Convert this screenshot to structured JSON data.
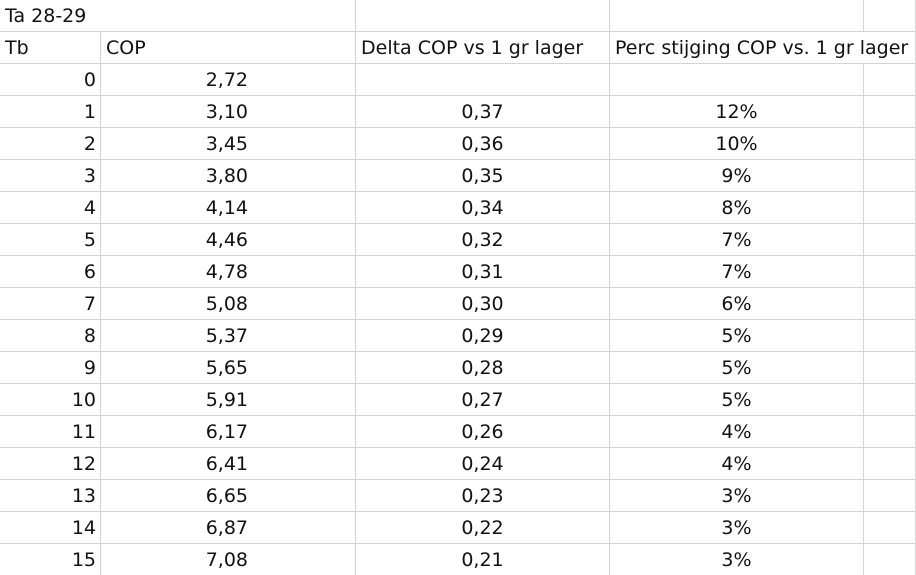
{
  "sheet": {
    "title_cell": "Ta 28-29",
    "headers": {
      "tb": "Tb",
      "cop": "COP",
      "delta": "Delta COP vs 1 gr lager",
      "perc": "Perc stijging COP vs. 1 gr lager"
    },
    "rows": [
      {
        "tb": "0",
        "cop": "2,72",
        "delta": "",
        "perc": ""
      },
      {
        "tb": "1",
        "cop": "3,10",
        "delta": "0,37",
        "perc": "12%"
      },
      {
        "tb": "2",
        "cop": "3,45",
        "delta": "0,36",
        "perc": "10%"
      },
      {
        "tb": "3",
        "cop": "3,80",
        "delta": "0,35",
        "perc": "9%"
      },
      {
        "tb": "4",
        "cop": "4,14",
        "delta": "0,34",
        "perc": "8%"
      },
      {
        "tb": "5",
        "cop": "4,46",
        "delta": "0,32",
        "perc": "7%"
      },
      {
        "tb": "6",
        "cop": "4,78",
        "delta": "0,31",
        "perc": "7%"
      },
      {
        "tb": "7",
        "cop": "5,08",
        "delta": "0,30",
        "perc": "6%"
      },
      {
        "tb": "8",
        "cop": "5,37",
        "delta": "0,29",
        "perc": "5%"
      },
      {
        "tb": "9",
        "cop": "5,65",
        "delta": "0,28",
        "perc": "5%"
      },
      {
        "tb": "10",
        "cop": "5,91",
        "delta": "0,27",
        "perc": "5%"
      },
      {
        "tb": "11",
        "cop": "6,17",
        "delta": "0,26",
        "perc": "4%"
      },
      {
        "tb": "12",
        "cop": "6,41",
        "delta": "0,24",
        "perc": "4%"
      },
      {
        "tb": "13",
        "cop": "6,65",
        "delta": "0,23",
        "perc": "3%"
      },
      {
        "tb": "14",
        "cop": "6,87",
        "delta": "0,22",
        "perc": "3%"
      },
      {
        "tb": "15",
        "cop": "7,08",
        "delta": "0,21",
        "perc": "3%"
      }
    ]
  },
  "colors": {
    "gridline": "#d4d4d4",
    "text": "#111111",
    "background": "#ffffff"
  }
}
